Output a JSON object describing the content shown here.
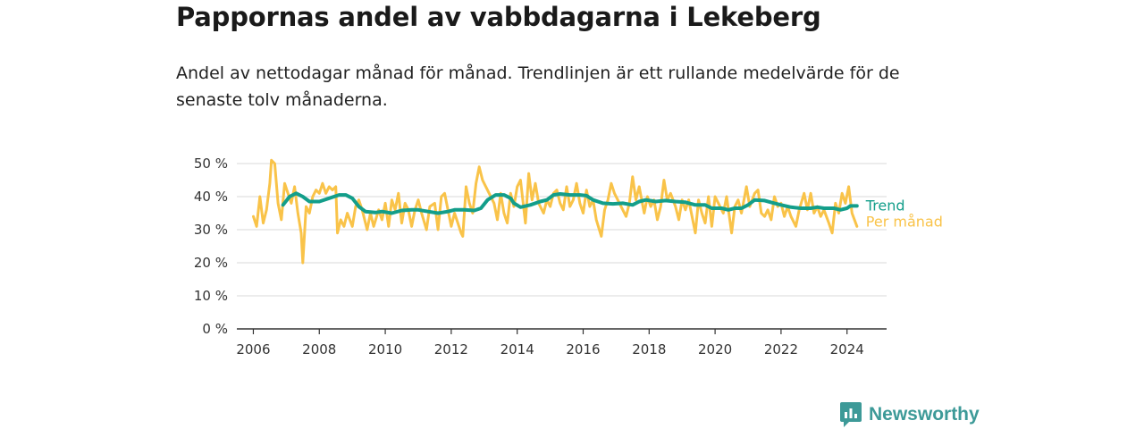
{
  "title": "Pappornas andel av vabbdagarna i Lekeberg",
  "subtitle": "Andel av nettodagar månad för månad. Trendlinjen är ett rullande medelvärde för de senaste tolv månaderna.",
  "brand": {
    "name": "Newsworthy",
    "color": "#3d9a98"
  },
  "chart_data": {
    "type": "line",
    "ylim": [
      0,
      50
    ],
    "xlim": [
      2005.5,
      2025.2
    ],
    "y_ticks": [
      0,
      10,
      20,
      30,
      40,
      50
    ],
    "y_tick_labels": [
      "0 %",
      "10 %",
      "20 %",
      "30 %",
      "40 %",
      "50 %"
    ],
    "x_ticks": [
      2006,
      2008,
      2010,
      2012,
      2014,
      2016,
      2018,
      2020,
      2022,
      2024
    ],
    "x_tick_labels": [
      "2006",
      "2008",
      "2010",
      "2012",
      "2014",
      "2016",
      "2018",
      "2020",
      "2022",
      "2024"
    ],
    "grid": true,
    "series": [
      {
        "name": "Per månad",
        "color": "#f9c349",
        "points": [
          [
            2006.0,
            34
          ],
          [
            2006.1,
            31
          ],
          [
            2006.2,
            40
          ],
          [
            2006.3,
            32
          ],
          [
            2006.4,
            36
          ],
          [
            2006.5,
            44
          ],
          [
            2006.55,
            51
          ],
          [
            2006.65,
            50
          ],
          [
            2006.75,
            38
          ],
          [
            2006.85,
            33
          ],
          [
            2006.95,
            44
          ],
          [
            2007.05,
            41
          ],
          [
            2007.15,
            38
          ],
          [
            2007.25,
            43
          ],
          [
            2007.35,
            35
          ],
          [
            2007.45,
            29
          ],
          [
            2007.5,
            20
          ],
          [
            2007.6,
            37
          ],
          [
            2007.7,
            35
          ],
          [
            2007.8,
            40
          ],
          [
            2007.9,
            42
          ],
          [
            2008.0,
            41
          ],
          [
            2008.1,
            44
          ],
          [
            2008.2,
            41
          ],
          [
            2008.3,
            43
          ],
          [
            2008.4,
            42
          ],
          [
            2008.5,
            43
          ],
          [
            2008.55,
            29
          ],
          [
            2008.65,
            33
          ],
          [
            2008.75,
            31
          ],
          [
            2008.85,
            35
          ],
          [
            2009.0,
            31
          ],
          [
            2009.1,
            37
          ],
          [
            2009.2,
            39
          ],
          [
            2009.3,
            36
          ],
          [
            2009.45,
            30
          ],
          [
            2009.55,
            35
          ],
          [
            2009.65,
            31
          ],
          [
            2009.8,
            36
          ],
          [
            2009.9,
            33
          ],
          [
            2010.0,
            38
          ],
          [
            2010.1,
            31
          ],
          [
            2010.2,
            39
          ],
          [
            2010.3,
            36
          ],
          [
            2010.4,
            41
          ],
          [
            2010.5,
            32
          ],
          [
            2010.6,
            38
          ],
          [
            2010.7,
            36
          ],
          [
            2010.8,
            31
          ],
          [
            2010.9,
            36
          ],
          [
            2011.0,
            39
          ],
          [
            2011.1,
            35
          ],
          [
            2011.25,
            30
          ],
          [
            2011.35,
            37
          ],
          [
            2011.5,
            38
          ],
          [
            2011.6,
            30
          ],
          [
            2011.7,
            40
          ],
          [
            2011.8,
            41
          ],
          [
            2011.9,
            36
          ],
          [
            2012.0,
            31
          ],
          [
            2012.1,
            35
          ],
          [
            2012.2,
            32
          ],
          [
            2012.3,
            29
          ],
          [
            2012.35,
            28
          ],
          [
            2012.45,
            43
          ],
          [
            2012.55,
            38
          ],
          [
            2012.65,
            35
          ],
          [
            2012.75,
            44
          ],
          [
            2012.85,
            49
          ],
          [
            2012.95,
            45
          ],
          [
            2013.05,
            43
          ],
          [
            2013.15,
            41
          ],
          [
            2013.3,
            38
          ],
          [
            2013.4,
            33
          ],
          [
            2013.5,
            41
          ],
          [
            2013.6,
            35
          ],
          [
            2013.7,
            32
          ],
          [
            2013.8,
            41
          ],
          [
            2013.9,
            37
          ],
          [
            2014.0,
            43
          ],
          [
            2014.1,
            45
          ],
          [
            2014.25,
            32
          ],
          [
            2014.35,
            47
          ],
          [
            2014.45,
            39
          ],
          [
            2014.55,
            44
          ],
          [
            2014.65,
            38
          ],
          [
            2014.8,
            35
          ],
          [
            2014.9,
            39
          ],
          [
            2015.0,
            37
          ],
          [
            2015.1,
            41
          ],
          [
            2015.2,
            42
          ],
          [
            2015.3,
            38
          ],
          [
            2015.4,
            36
          ],
          [
            2015.5,
            43
          ],
          [
            2015.6,
            37
          ],
          [
            2015.7,
            39
          ],
          [
            2015.8,
            44
          ],
          [
            2015.9,
            38
          ],
          [
            2016.0,
            35
          ],
          [
            2016.1,
            42
          ],
          [
            2016.2,
            37
          ],
          [
            2016.3,
            39
          ],
          [
            2016.4,
            33
          ],
          [
            2016.55,
            28
          ],
          [
            2016.65,
            36
          ],
          [
            2016.75,
            39
          ],
          [
            2016.85,
            44
          ],
          [
            2016.95,
            41
          ],
          [
            2017.1,
            38
          ],
          [
            2017.2,
            36
          ],
          [
            2017.3,
            34
          ],
          [
            2017.4,
            38
          ],
          [
            2017.5,
            46
          ],
          [
            2017.6,
            39
          ],
          [
            2017.7,
            43
          ],
          [
            2017.85,
            35
          ],
          [
            2017.95,
            40
          ],
          [
            2018.05,
            37
          ],
          [
            2018.15,
            39
          ],
          [
            2018.25,
            33
          ],
          [
            2018.35,
            37
          ],
          [
            2018.45,
            45
          ],
          [
            2018.55,
            39
          ],
          [
            2018.65,
            41
          ],
          [
            2018.8,
            37
          ],
          [
            2018.9,
            33
          ],
          [
            2019.0,
            39
          ],
          [
            2019.1,
            36
          ],
          [
            2019.2,
            39
          ],
          [
            2019.3,
            34
          ],
          [
            2019.4,
            29
          ],
          [
            2019.5,
            39
          ],
          [
            2019.6,
            35
          ],
          [
            2019.7,
            32
          ],
          [
            2019.8,
            40
          ],
          [
            2019.9,
            31
          ],
          [
            2020.0,
            40
          ],
          [
            2020.1,
            38
          ],
          [
            2020.25,
            35
          ],
          [
            2020.35,
            40
          ],
          [
            2020.5,
            29
          ],
          [
            2020.6,
            37
          ],
          [
            2020.7,
            39
          ],
          [
            2020.8,
            35
          ],
          [
            2020.95,
            43
          ],
          [
            2021.05,
            37
          ],
          [
            2021.2,
            41
          ],
          [
            2021.3,
            42
          ],
          [
            2021.4,
            35
          ],
          [
            2021.5,
            34
          ],
          [
            2021.6,
            36
          ],
          [
            2021.7,
            33
          ],
          [
            2021.8,
            40
          ],
          [
            2021.9,
            37
          ],
          [
            2022.0,
            38
          ],
          [
            2022.1,
            34
          ],
          [
            2022.2,
            37
          ],
          [
            2022.3,
            34
          ],
          [
            2022.45,
            31
          ],
          [
            2022.55,
            36
          ],
          [
            2022.7,
            41
          ],
          [
            2022.8,
            36
          ],
          [
            2022.9,
            41
          ],
          [
            2023.0,
            35
          ],
          [
            2023.1,
            37
          ],
          [
            2023.2,
            34
          ],
          [
            2023.3,
            36
          ],
          [
            2023.45,
            32
          ],
          [
            2023.55,
            29
          ],
          [
            2023.65,
            38
          ],
          [
            2023.75,
            35
          ],
          [
            2023.85,
            41
          ],
          [
            2023.95,
            38
          ],
          [
            2024.05,
            43
          ],
          [
            2024.15,
            35
          ],
          [
            2024.3,
            31
          ]
        ]
      },
      {
        "name": "Trend",
        "color": "#139e8a",
        "points": [
          [
            2006.9,
            37.5
          ],
          [
            2007.1,
            40
          ],
          [
            2007.3,
            41
          ],
          [
            2007.5,
            40
          ],
          [
            2007.7,
            38.5
          ],
          [
            2008.0,
            38.5
          ],
          [
            2008.3,
            39.5
          ],
          [
            2008.6,
            40.5
          ],
          [
            2008.8,
            40.5
          ],
          [
            2009.0,
            39.5
          ],
          [
            2009.2,
            37
          ],
          [
            2009.4,
            35.5
          ],
          [
            2009.7,
            35.2
          ],
          [
            2009.9,
            35.5
          ],
          [
            2010.2,
            35
          ],
          [
            2010.5,
            35.8
          ],
          [
            2010.8,
            36
          ],
          [
            2011.0,
            36
          ],
          [
            2011.3,
            35.5
          ],
          [
            2011.6,
            35
          ],
          [
            2011.9,
            35.5
          ],
          [
            2012.1,
            36
          ],
          [
            2012.4,
            36
          ],
          [
            2012.7,
            35.8
          ],
          [
            2012.9,
            36.5
          ],
          [
            2013.1,
            39
          ],
          [
            2013.35,
            40.5
          ],
          [
            2013.6,
            40.5
          ],
          [
            2013.8,
            39.5
          ],
          [
            2013.9,
            38
          ],
          [
            2014.1,
            36.8
          ],
          [
            2014.4,
            37.5
          ],
          [
            2014.7,
            38.5
          ],
          [
            2014.9,
            39
          ],
          [
            2015.1,
            40.5
          ],
          [
            2015.3,
            40.8
          ],
          [
            2015.6,
            40.5
          ],
          [
            2015.9,
            40.5
          ],
          [
            2016.1,
            40.3
          ],
          [
            2016.3,
            39
          ],
          [
            2016.6,
            38
          ],
          [
            2016.9,
            37.8
          ],
          [
            2017.2,
            38
          ],
          [
            2017.5,
            37.5
          ],
          [
            2017.7,
            38.5
          ],
          [
            2017.9,
            39
          ],
          [
            2018.2,
            38.5
          ],
          [
            2018.5,
            38.8
          ],
          [
            2018.8,
            38.5
          ],
          [
            2019.1,
            38.3
          ],
          [
            2019.4,
            37.5
          ],
          [
            2019.7,
            37.5
          ],
          [
            2019.9,
            36.5
          ],
          [
            2020.2,
            36.5
          ],
          [
            2020.4,
            36
          ],
          [
            2020.6,
            36.5
          ],
          [
            2020.8,
            36.5
          ],
          [
            2021.0,
            37.5
          ],
          [
            2021.2,
            39
          ],
          [
            2021.5,
            38.8
          ],
          [
            2021.8,
            38
          ],
          [
            2022.0,
            37.5
          ],
          [
            2022.3,
            36.8
          ],
          [
            2022.6,
            36.5
          ],
          [
            2022.9,
            36.5
          ],
          [
            2023.1,
            36.8
          ],
          [
            2023.3,
            36.5
          ],
          [
            2023.6,
            36.5
          ],
          [
            2023.8,
            36
          ],
          [
            2024.0,
            36.5
          ],
          [
            2024.1,
            37.2
          ],
          [
            2024.3,
            37.2
          ]
        ]
      }
    ]
  }
}
